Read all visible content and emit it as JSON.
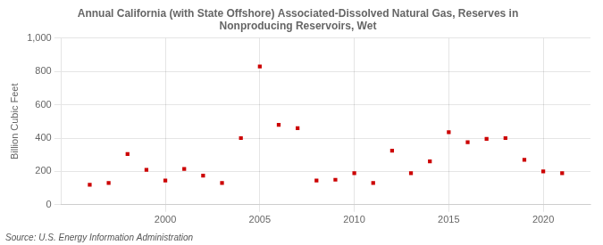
{
  "chart_data": {
    "type": "scatter",
    "title": "Annual California (with State Offshore) Associated-Dissolved Natural Gas, Reserves in\nNonproducing Reservoirs, Wet",
    "ylabel": "Billion Cubic Feet",
    "source": "Source: U.S. Energy Information Administration",
    "x": [
      1996,
      1997,
      1998,
      1999,
      2000,
      2001,
      2002,
      2003,
      2004,
      2005,
      2006,
      2007,
      2008,
      2009,
      2010,
      2011,
      2012,
      2013,
      2014,
      2015,
      2016,
      2017,
      2018,
      2019,
      2020,
      2021
    ],
    "values": [
      120,
      130,
      305,
      210,
      145,
      215,
      175,
      130,
      400,
      830,
      480,
      460,
      145,
      150,
      190,
      130,
      325,
      190,
      260,
      435,
      375,
      395,
      400,
      270,
      200,
      190
    ],
    "color": "#cc0000",
    "marker": "square",
    "xlim": [
      1994.5,
      2022.5
    ],
    "xticks": [
      2000,
      2005,
      2010,
      2015,
      2020
    ],
    "ylim": [
      0,
      1000
    ],
    "yticks": [
      0,
      200,
      400,
      600,
      800,
      {
        "value": 1000,
        "label": "1,000"
      }
    ],
    "grid": true
  }
}
